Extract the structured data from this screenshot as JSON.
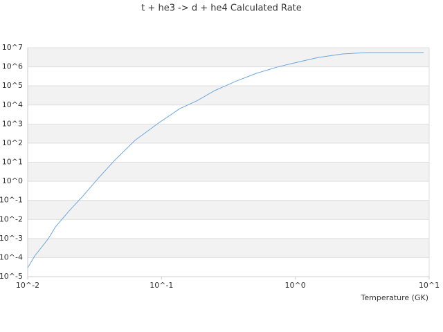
{
  "chart_data": {
    "type": "line",
    "title": "t + he3 -> d + he4 Calculated Rate",
    "x_label": "Temperature (GK)",
    "log_x": true,
    "log_y": true,
    "grid": true,
    "xlim": [
      0.01,
      10
    ],
    "ylim": [
      1e-05,
      10000000.0
    ],
    "xticks": [
      {
        "value": 0.01,
        "label": "10^-2"
      },
      {
        "value": 0.1,
        "label": "10^-1"
      },
      {
        "value": 1,
        "label": "10^0"
      },
      {
        "value": 10,
        "label": "10^1"
      }
    ],
    "yticks": [
      {
        "value": 1e-05,
        "label": "10^-5"
      },
      {
        "value": 0.0001,
        "label": "10^-4"
      },
      {
        "value": 0.001,
        "label": "10^-3"
      },
      {
        "value": 0.01,
        "label": "10^-2"
      },
      {
        "value": 0.1,
        "label": "10^-1"
      },
      {
        "value": 1,
        "label": "10^0"
      },
      {
        "value": 10,
        "label": "10^1"
      },
      {
        "value": 100,
        "label": "10^2"
      },
      {
        "value": 1000,
        "label": "10^3"
      },
      {
        "value": 10000,
        "label": "10^4"
      },
      {
        "value": 100000,
        "label": "10^5"
      },
      {
        "value": 1000000,
        "label": "10^6"
      },
      {
        "value": 10000000,
        "label": "10^7"
      }
    ],
    "x": [
      0.01,
      0.01127,
      0.01429,
      0.0161,
      0.0204,
      0.0259,
      0.0329,
      0.0444,
      0.0634,
      0.0962,
      0.1374,
      0.185,
      0.249,
      0.356,
      0.509,
      0.728,
      0.982,
      1.49,
      2.26,
      3.43,
      9.12
    ],
    "series": [
      {
        "color": "#6aa6e0",
        "values": [
          2.9e-05,
          0.00012,
          0.001,
          0.004,
          0.028,
          0.17,
          1.2,
          12,
          140,
          1200,
          6500,
          17000,
          56000,
          170000,
          450000,
          960000,
          1600000,
          3100000,
          4700000,
          5600000,
          5600000
        ]
      }
    ]
  }
}
